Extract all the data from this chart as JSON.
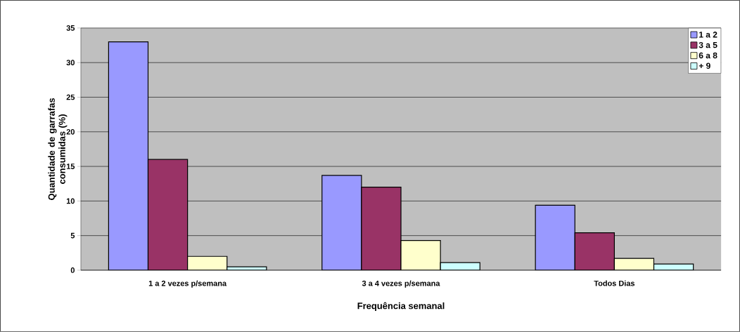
{
  "chart_data": {
    "type": "bar",
    "xlabel": "Frequência semanal",
    "ylabel": "Quantidade de garrafas consumidas (%)",
    "categories": [
      "1 a 2 vezes p/semana",
      "3 a 4 vezes p/semana",
      "Todos Dias"
    ],
    "series": [
      {
        "name": "1 a 2",
        "color": "#9999ff",
        "values": [
          33,
          13.7,
          9.4
        ]
      },
      {
        "name": "3 a 5",
        "color": "#993366",
        "values": [
          16,
          12,
          5.4
        ]
      },
      {
        "name": "6 a 8",
        "color": "#ffffcc",
        "values": [
          2,
          4.3,
          1.7
        ]
      },
      {
        "name": "+ 9",
        "color": "#ccffff",
        "values": [
          0.5,
          1.1,
          0.9
        ]
      }
    ],
    "ylim": [
      0,
      35
    ],
    "yticks": [
      0,
      5,
      10,
      15,
      20,
      25,
      30,
      35
    ],
    "grid": "y",
    "legend": "top right"
  }
}
